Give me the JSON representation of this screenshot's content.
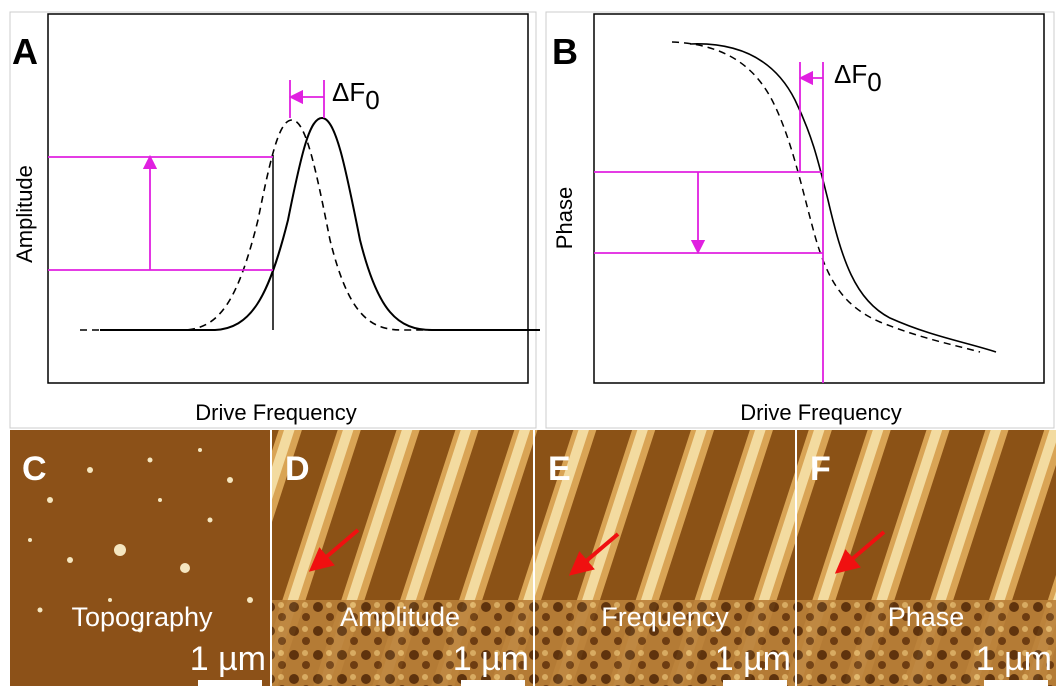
{
  "panels": [
    {
      "label": "A",
      "y_label": "Amplitude",
      "x_label": "Drive Frequency",
      "annotation": {
        "symbol": "ΔF",
        "subscript": "0"
      }
    },
    {
      "label": "B",
      "y_label": "Phase",
      "x_label": "Drive Frequency",
      "annotation": {
        "symbol": "ΔF",
        "subscript": "0"
      }
    }
  ],
  "images": [
    {
      "label": "C",
      "caption": "Topography",
      "scale": "1 µm"
    },
    {
      "label": "D",
      "caption": "Amplitude",
      "scale": "1 µm"
    },
    {
      "label": "E",
      "caption": "Frequency",
      "scale": "1 µm"
    },
    {
      "label": "F",
      "caption": "Phase",
      "scale": "1 µm"
    }
  ]
}
